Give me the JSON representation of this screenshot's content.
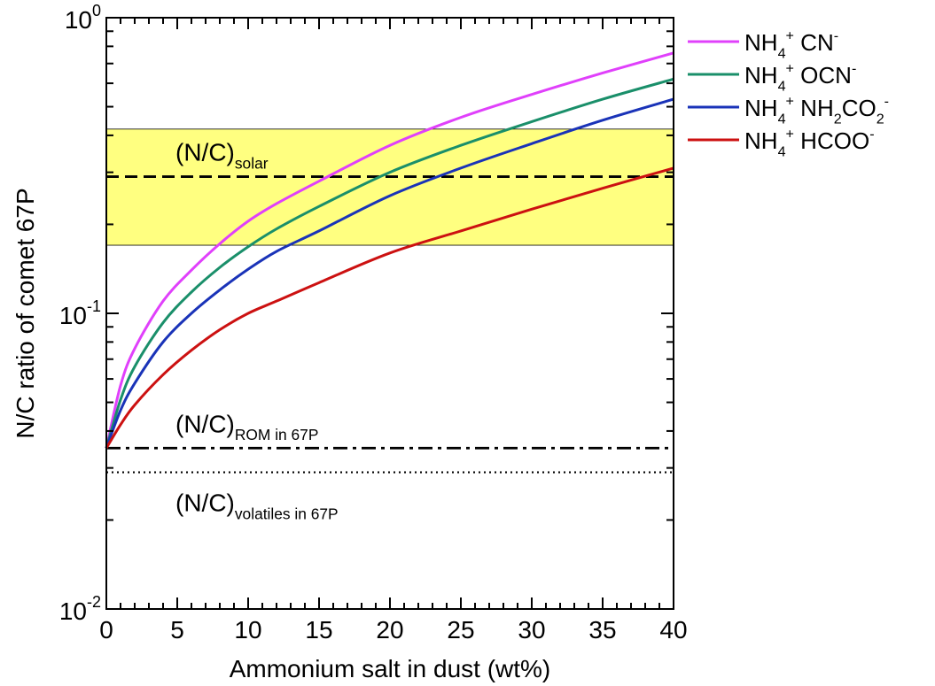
{
  "chart_data": {
    "type": "line",
    "xlabel": "Ammonium salt in dust (wt%)",
    "ylabel": "N/C ratio of comet 67P",
    "xlim": [
      0,
      40
    ],
    "ylim": [
      0.01,
      1
    ],
    "yscale": "log",
    "x_ticks": [
      "0",
      "5",
      "10",
      "15",
      "20",
      "25",
      "30",
      "35",
      "40"
    ],
    "y_ticks": [
      {
        "base": "10",
        "exp": "0",
        "value": 1
      },
      {
        "base": "10",
        "exp": "-1",
        "value": 0.1
      },
      {
        "base": "10",
        "exp": "-2",
        "value": 0.01
      }
    ],
    "legend_position": "outside-right",
    "solar_band": {
      "low": 0.17,
      "high": 0.42,
      "color": "#ffff80"
    },
    "reference_lines": [
      {
        "label_main": "(N/C)",
        "label_sub": "solar",
        "value": 0.29,
        "style": "dashed"
      },
      {
        "label_main": "(N/C)",
        "label_sub": "ROM in 67P",
        "value": 0.035,
        "style": "dashdot"
      },
      {
        "label_main": "(N/C)",
        "label_sub": "volatiles in 67P",
        "value": 0.029,
        "style": "dotted"
      }
    ],
    "x": [
      0,
      1,
      2,
      4,
      6,
      8,
      10,
      12,
      15,
      20,
      25,
      30,
      35,
      40
    ],
    "series": [
      {
        "key": "cn",
        "legend": [
          {
            "t": "NH"
          },
          {
            "t": "4",
            "s": "sub"
          },
          {
            "t": "+",
            "s": "sup"
          },
          {
            "t": " CN"
          },
          {
            "t": "-",
            "s": "sup"
          }
        ],
        "color": "#e040fb",
        "values": [
          0.035,
          0.057,
          0.076,
          0.11,
          0.14,
          0.172,
          0.205,
          0.235,
          0.28,
          0.37,
          0.46,
          0.55,
          0.65,
          0.76
        ]
      },
      {
        "key": "ocn",
        "legend": [
          {
            "t": "NH"
          },
          {
            "t": "4",
            "s": "sub"
          },
          {
            "t": "+",
            "s": "sup"
          },
          {
            "t": " OCN"
          },
          {
            "t": "-",
            "s": "sup"
          }
        ],
        "color": "#1a8f6a",
        "values": [
          0.035,
          0.051,
          0.066,
          0.093,
          0.118,
          0.143,
          0.168,
          0.193,
          0.23,
          0.3,
          0.37,
          0.445,
          0.53,
          0.62
        ]
      },
      {
        "key": "nh2co2",
        "legend": [
          {
            "t": "NH"
          },
          {
            "t": "4",
            "s": "sub"
          },
          {
            "t": "+",
            "s": "sup"
          },
          {
            "t": " NH"
          },
          {
            "t": "2",
            "s": "sub"
          },
          {
            "t": "CO"
          },
          {
            "t": "2",
            "s": "sub"
          },
          {
            "t": "-",
            "s": "sup"
          }
        ],
        "color": "#1a33b8",
        "values": [
          0.035,
          0.047,
          0.058,
          0.08,
          0.1,
          0.12,
          0.141,
          0.162,
          0.19,
          0.25,
          0.31,
          0.375,
          0.45,
          0.53
        ]
      },
      {
        "key": "hcoo",
        "legend": [
          {
            "t": "NH"
          },
          {
            "t": "4",
            "s": "sub"
          },
          {
            "t": "+",
            "s": "sup"
          },
          {
            "t": " HCOO"
          },
          {
            "t": "-",
            "s": "sup"
          }
        ],
        "color": "#cc1111",
        "values": [
          0.035,
          0.042,
          0.049,
          0.062,
          0.075,
          0.088,
          0.1,
          0.11,
          0.127,
          0.16,
          0.19,
          0.225,
          0.265,
          0.31
        ]
      }
    ]
  }
}
